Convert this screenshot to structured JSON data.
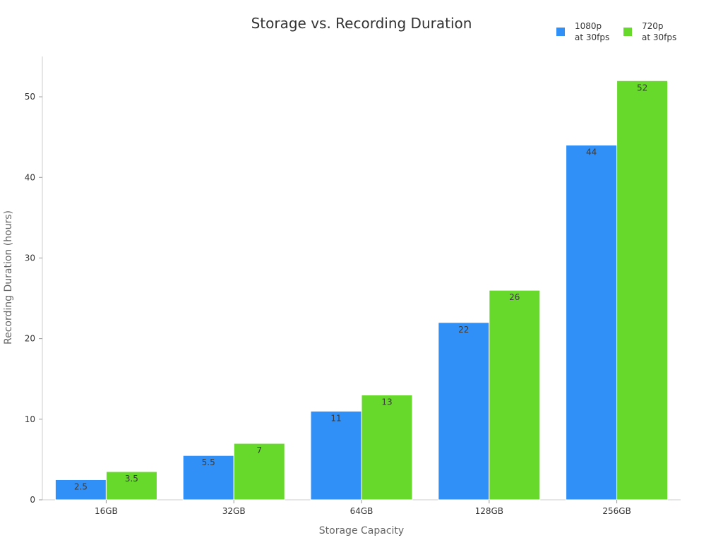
{
  "chart_data": {
    "type": "bar",
    "title": "Storage vs. Recording Duration",
    "xlabel": "Storage Capacity",
    "ylabel": "Recording Duration (hours)",
    "categories": [
      "16GB",
      "32GB",
      "64GB",
      "128GB",
      "256GB"
    ],
    "series": [
      {
        "name": "1080p at 30fps",
        "name_lines": [
          "1080p",
          "at 30fps"
        ],
        "color": "#3090f7",
        "values": [
          2.5,
          5.5,
          11,
          22,
          44
        ],
        "value_labels": [
          "2.5",
          "5.5",
          "11",
          "22",
          "44"
        ]
      },
      {
        "name": "720p at 30fps",
        "name_lines": [
          "720p",
          "at 30fps"
        ],
        "color": "#66d92a",
        "values": [
          3.5,
          7,
          13,
          26,
          52
        ],
        "value_labels": [
          "3.5",
          "7",
          "13",
          "26",
          "52"
        ]
      }
    ],
    "ylim": [
      0,
      55
    ],
    "yticks": [
      0,
      10,
      20,
      30,
      40,
      50
    ],
    "grid": false,
    "legend_position": "top-right"
  }
}
